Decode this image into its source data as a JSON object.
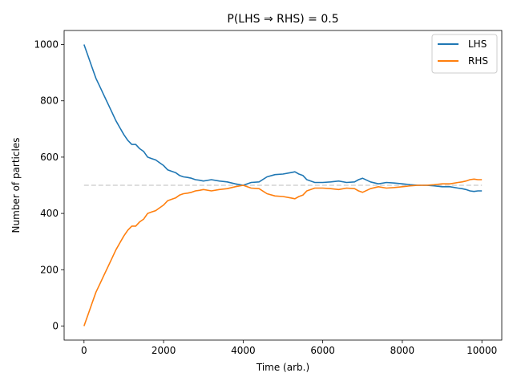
{
  "chart_data": {
    "type": "line",
    "title": "P(LHS ⇒ RHS) = 0.5",
    "xlabel": "Time (arb.)",
    "ylabel": "Number of particles",
    "xlim": [
      -500,
      10500
    ],
    "ylim": [
      -50,
      1050
    ],
    "xticks": [
      0,
      2000,
      4000,
      6000,
      8000,
      10000
    ],
    "yticks": [
      0,
      200,
      400,
      600,
      800,
      1000
    ],
    "legend_position": "top-right",
    "grid": false,
    "reference_line": {
      "y": 500,
      "x_range": [
        0,
        10000
      ],
      "style": "dashed",
      "color": "#d3d3d3"
    },
    "series": [
      {
        "name": "LHS",
        "color": "#1f77b4",
        "x": [
          0,
          100,
          200,
          300,
          400,
          500,
          600,
          700,
          800,
          900,
          1000,
          1100,
          1200,
          1300,
          1400,
          1500,
          1600,
          1700,
          1800,
          1900,
          2000,
          2100,
          2200,
          2300,
          2400,
          2500,
          2600,
          2700,
          2800,
          2900,
          3000,
          3200,
          3400,
          3600,
          3800,
          4000,
          4200,
          4400,
          4600,
          4800,
          5000,
          5200,
          5300,
          5400,
          5500,
          5600,
          5800,
          6000,
          6200,
          6400,
          6600,
          6800,
          6900,
          7000,
          7200,
          7400,
          7600,
          7800,
          8000,
          8200,
          8400,
          8600,
          8800,
          9000,
          9200,
          9400,
          9500,
          9600,
          9700,
          9800,
          9900,
          10000
        ],
        "y": [
          1000,
          960,
          920,
          880,
          850,
          820,
          790,
          760,
          730,
          705,
          680,
          660,
          645,
          645,
          630,
          620,
          600,
          595,
          590,
          580,
          570,
          555,
          550,
          545,
          535,
          530,
          528,
          525,
          520,
          518,
          515,
          520,
          515,
          512,
          505,
          500,
          510,
          512,
          530,
          538,
          540,
          545,
          548,
          540,
          535,
          520,
          510,
          510,
          512,
          515,
          510,
          512,
          520,
          525,
          512,
          505,
          510,
          508,
          505,
          502,
          500,
          500,
          498,
          495,
          495,
          490,
          488,
          485,
          480,
          478,
          480,
          480
        ]
      },
      {
        "name": "RHS",
        "color": "#ff7f0e",
        "x": [
          0,
          100,
          200,
          300,
          400,
          500,
          600,
          700,
          800,
          900,
          1000,
          1100,
          1200,
          1300,
          1400,
          1500,
          1600,
          1700,
          1800,
          1900,
          2000,
          2100,
          2200,
          2300,
          2400,
          2500,
          2600,
          2700,
          2800,
          2900,
          3000,
          3200,
          3400,
          3600,
          3800,
          4000,
          4200,
          4400,
          4600,
          4800,
          5000,
          5200,
          5300,
          5400,
          5500,
          5600,
          5800,
          6000,
          6200,
          6400,
          6600,
          6800,
          6900,
          7000,
          7200,
          7400,
          7600,
          7800,
          8000,
          8200,
          8400,
          8600,
          8800,
          9000,
          9200,
          9400,
          9500,
          9600,
          9700,
          9800,
          9900,
          10000
        ],
        "y": [
          0,
          40,
          80,
          120,
          150,
          180,
          210,
          240,
          270,
          295,
          320,
          340,
          355,
          355,
          370,
          380,
          400,
          405,
          410,
          420,
          430,
          445,
          450,
          455,
          465,
          470,
          472,
          475,
          480,
          482,
          485,
          480,
          485,
          488,
          495,
          500,
          490,
          488,
          470,
          462,
          460,
          455,
          452,
          460,
          465,
          480,
          490,
          490,
          488,
          485,
          490,
          488,
          480,
          475,
          488,
          495,
          490,
          492,
          495,
          498,
          500,
          500,
          502,
          505,
          505,
          510,
          512,
          515,
          520,
          522,
          520,
          520
        ]
      }
    ]
  }
}
